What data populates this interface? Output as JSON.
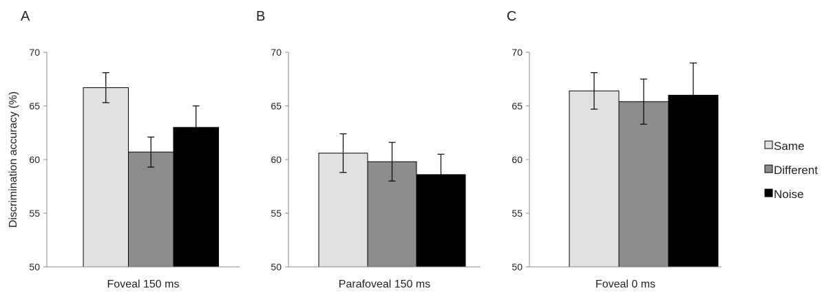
{
  "legend": [
    {
      "label": "Same",
      "color": "#e0e0e0"
    },
    {
      "label": "Different",
      "color": "#8c8c8c"
    },
    {
      "label": "Noise",
      "color": "#000000"
    }
  ],
  "ylabel": "Discrimination accuracy (%)",
  "chart_data": [
    {
      "type": "bar",
      "panel": "A",
      "categories": [
        "Foveal 150 ms"
      ],
      "series": [
        {
          "name": "Same",
          "values": [
            66.7
          ],
          "error": [
            1.4
          ]
        },
        {
          "name": "Different",
          "values": [
            60.7
          ],
          "error": [
            1.4
          ]
        },
        {
          "name": "Noise",
          "values": [
            63.0
          ],
          "error": [
            2.0
          ]
        }
      ],
      "ylabel": "Discrimination accuracy (%)",
      "ylim": [
        50,
        70
      ],
      "yticks": [
        50,
        55,
        60,
        65,
        70
      ],
      "grid": false,
      "legend": "right"
    },
    {
      "type": "bar",
      "panel": "B",
      "categories": [
        "Parafoveal 150 ms"
      ],
      "series": [
        {
          "name": "Same",
          "values": [
            60.6
          ],
          "error": [
            1.8
          ]
        },
        {
          "name": "Different",
          "values": [
            59.8
          ],
          "error": [
            1.8
          ]
        },
        {
          "name": "Noise",
          "values": [
            58.6
          ],
          "error": [
            1.9
          ]
        }
      ],
      "ylim": [
        50,
        70
      ],
      "yticks": [
        50,
        55,
        60,
        65,
        70
      ],
      "grid": false
    },
    {
      "type": "bar",
      "panel": "C",
      "categories": [
        "Foveal 0 ms"
      ],
      "series": [
        {
          "name": "Same",
          "values": [
            66.4
          ],
          "error": [
            1.7
          ]
        },
        {
          "name": "Different",
          "values": [
            65.4
          ],
          "error": [
            2.1
          ]
        },
        {
          "name": "Noise",
          "values": [
            66.0
          ],
          "error": [
            3.0
          ]
        }
      ],
      "ylim": [
        50,
        70
      ],
      "yticks": [
        50,
        55,
        60,
        65,
        70
      ],
      "grid": false
    }
  ]
}
